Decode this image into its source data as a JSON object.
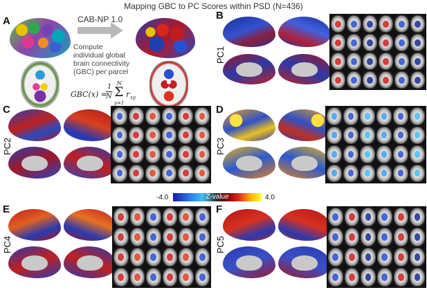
{
  "figure": {
    "title": "Mapping GBC to PC Scores within PSD (N=436)",
    "panels": {
      "a": "A",
      "b": "B",
      "c": "C",
      "d": "D",
      "e": "E",
      "f": "F"
    },
    "pc_labels": {
      "b": "PC1",
      "c": "PC2",
      "d": "PC3",
      "e": "PC4",
      "f": "PC5"
    },
    "atlas_label": "CAB-NP 1.0",
    "description": [
      "Compute",
      "individual global",
      "brain connectivity",
      "(GBC) per parcel"
    ],
    "formula": {
      "lhs": "GBC(x) =",
      "frac_num": "1",
      "frac_den": "N",
      "sum_top": "N",
      "sum_bottom": "y=1",
      "term": "r",
      "term_sub": "xy"
    },
    "colorbar": {
      "min_label": "-4.0",
      "center_label": "Z-value",
      "max_label": "4.0",
      "colors": [
        "#1a1aa8",
        "#2a6fe0",
        "#3fc0f5",
        "#2a2a2a",
        "#8b0000",
        "#e0301e",
        "#ffb000",
        "#ffff40"
      ]
    }
  }
}
